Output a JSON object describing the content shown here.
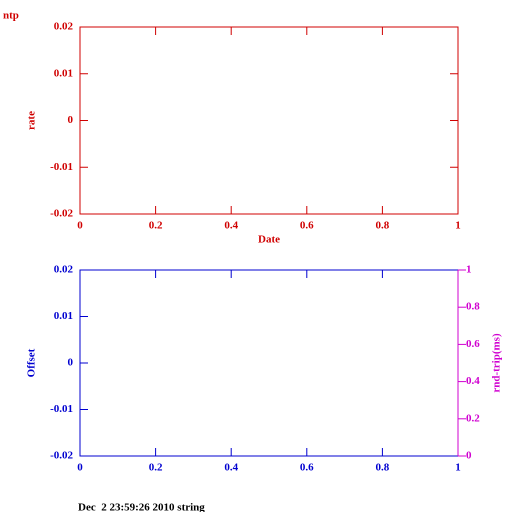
{
  "chart_data": [
    {
      "type": "line",
      "title": "ntp",
      "x_label": "Date",
      "y_label": "rate",
      "color": "#d00000",
      "xlim": [
        0,
        1
      ],
      "xticks": [
        0,
        0.2,
        0.4,
        0.6,
        0.8,
        1
      ],
      "ylim": [
        -0.02,
        0.02
      ],
      "yticks": [
        -0.02,
        -0.01,
        0,
        0.01,
        0.02
      ]
    },
    {
      "type": "line",
      "y_label": "Offset",
      "y2_label": "rnd-trip(ms)",
      "color": "#0000d0",
      "y2_color": "#d000d0",
      "xlim": [
        0,
        1
      ],
      "xticks": [
        0,
        0.2,
        0.4,
        0.6,
        0.8,
        1
      ],
      "ylim": [
        -0.02,
        0.02
      ],
      "yticks": [
        -0.02,
        -0.01,
        0,
        0.01,
        0.02
      ],
      "y2lim": [
        0,
        1
      ],
      "y2ticks": [
        0,
        0.2,
        0.4,
        0.6,
        0.8,
        1
      ]
    }
  ],
  "footer": "Dec  2 23:59:26 2010 string"
}
